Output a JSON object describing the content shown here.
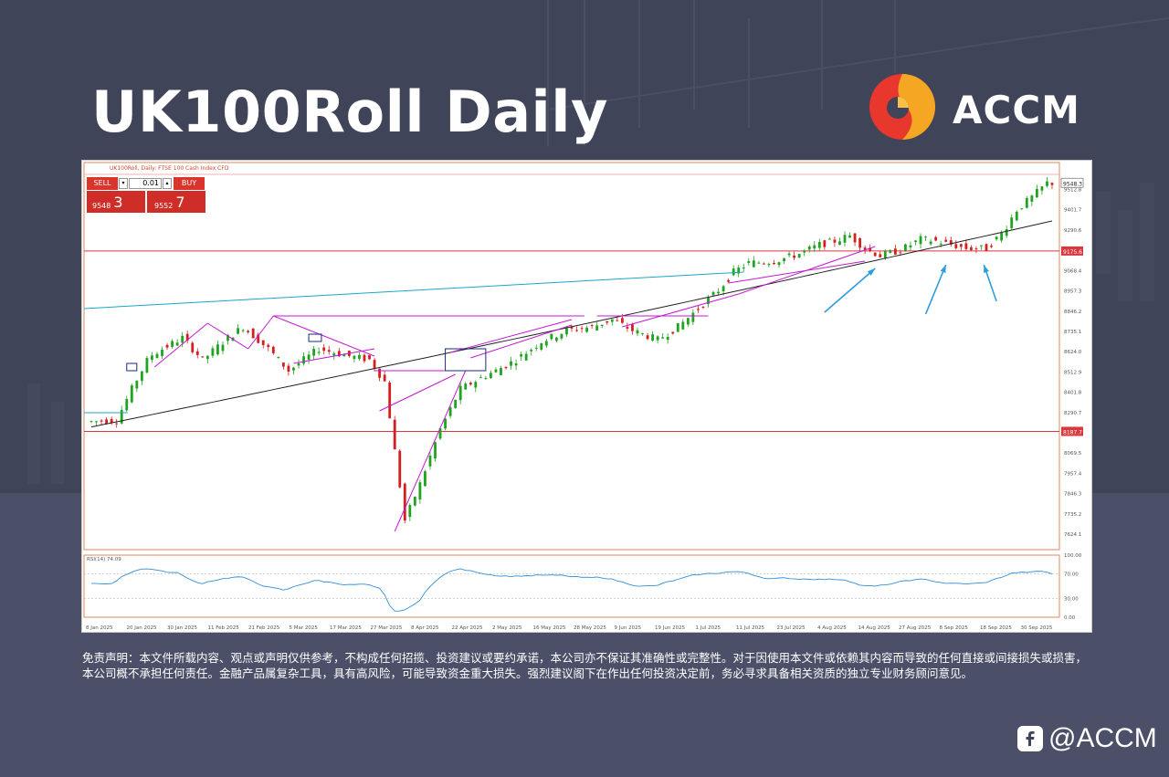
{
  "header": {
    "title": "UK100Roll Daily",
    "logo_text": "ACCM",
    "logo_colors": [
      "#e8372c",
      "#f5a623"
    ]
  },
  "chart_header": {
    "symbol_text": "UK100Roll, Daily: FTSE 100 Cash Index CFD",
    "sell_label": "SELL",
    "buy_label": "BUY",
    "lot_value": "0.01",
    "sell_price_main": "9548",
    "sell_price_big": "3",
    "buy_price_main": "9552",
    "buy_price_big": "7",
    "rsi_label": "RSI(14) 74.09"
  },
  "chart_data": {
    "type": "candlestick",
    "x_tick_labels": [
      "8 Jan 2025",
      "20 Jan 2025",
      "30 Jan 2025",
      "11 Feb 2025",
      "21 Feb 2025",
      "5 Mar 2025",
      "17 Mar 2025",
      "27 Mar 2025",
      "8 Apr 2025",
      "22 Apr 2025",
      "2 May 2025",
      "16 May 2025",
      "28 May 2025",
      "9 Jun 2025",
      "19 Jun 2025",
      "1 Jul 2025",
      "11 Jul 2025",
      "23 Jul 2025",
      "4 Aug 2025",
      "14 Aug 2025",
      "27 Aug 2025",
      "8 Sep 2025",
      "18 Sep 2025",
      "30 Sep 2025"
    ],
    "y_tick_labels": [
      "9512.8",
      "9401.7",
      "9290.6",
      "9068.4",
      "8957.3",
      "8846.2",
      "8735.1",
      "8624.0",
      "8512.9",
      "8401.8",
      "8290.7",
      "8069.5",
      "7957.4",
      "7846.3",
      "7735.2",
      "7624.1"
    ],
    "ylim": [
      7540,
      9600
    ],
    "current_price_label": "9548.3",
    "horizontal_levels": [
      {
        "value": 9175.6,
        "label": "9175.6",
        "color": "#d9373e"
      },
      {
        "value": 8187.7,
        "label": "8187.7",
        "color": "#d9373e"
      }
    ],
    "rsi": {
      "label": "RSI(14) 74.09",
      "levels": [
        70,
        30
      ],
      "ylim": [
        0,
        100
      ],
      "y_tick_labels": [
        "100.00",
        "70.00",
        "30.00",
        "0.00"
      ]
    },
    "colors": {
      "up": "#1fa41f",
      "down": "#d41f1f",
      "ma": "#222222",
      "trendline": "#18a8c8",
      "pattern": "#c21ad1",
      "rsi": "#2f8fd9",
      "arrow": "#2e9cdf"
    }
  },
  "disclaimer": "免责声明：本文件所载内容、观点或声明仅供参考，不构成任何招揽、投资建议或要约承诺，本公司亦不保证其准确性或完整性。对于因使用本文件或依赖其内容而导致的任何直接或间接损失或损害，本公司概不承担任何责任。金融产品属复杂工具，具有高风险，可能导致资金重大损失。强烈建议阁下在作出任何投资决定前，务必寻求具备相关资质的独立专业财务顾问意见。",
  "social": {
    "handle": "@ACCM",
    "icon": "facebook-icon"
  }
}
